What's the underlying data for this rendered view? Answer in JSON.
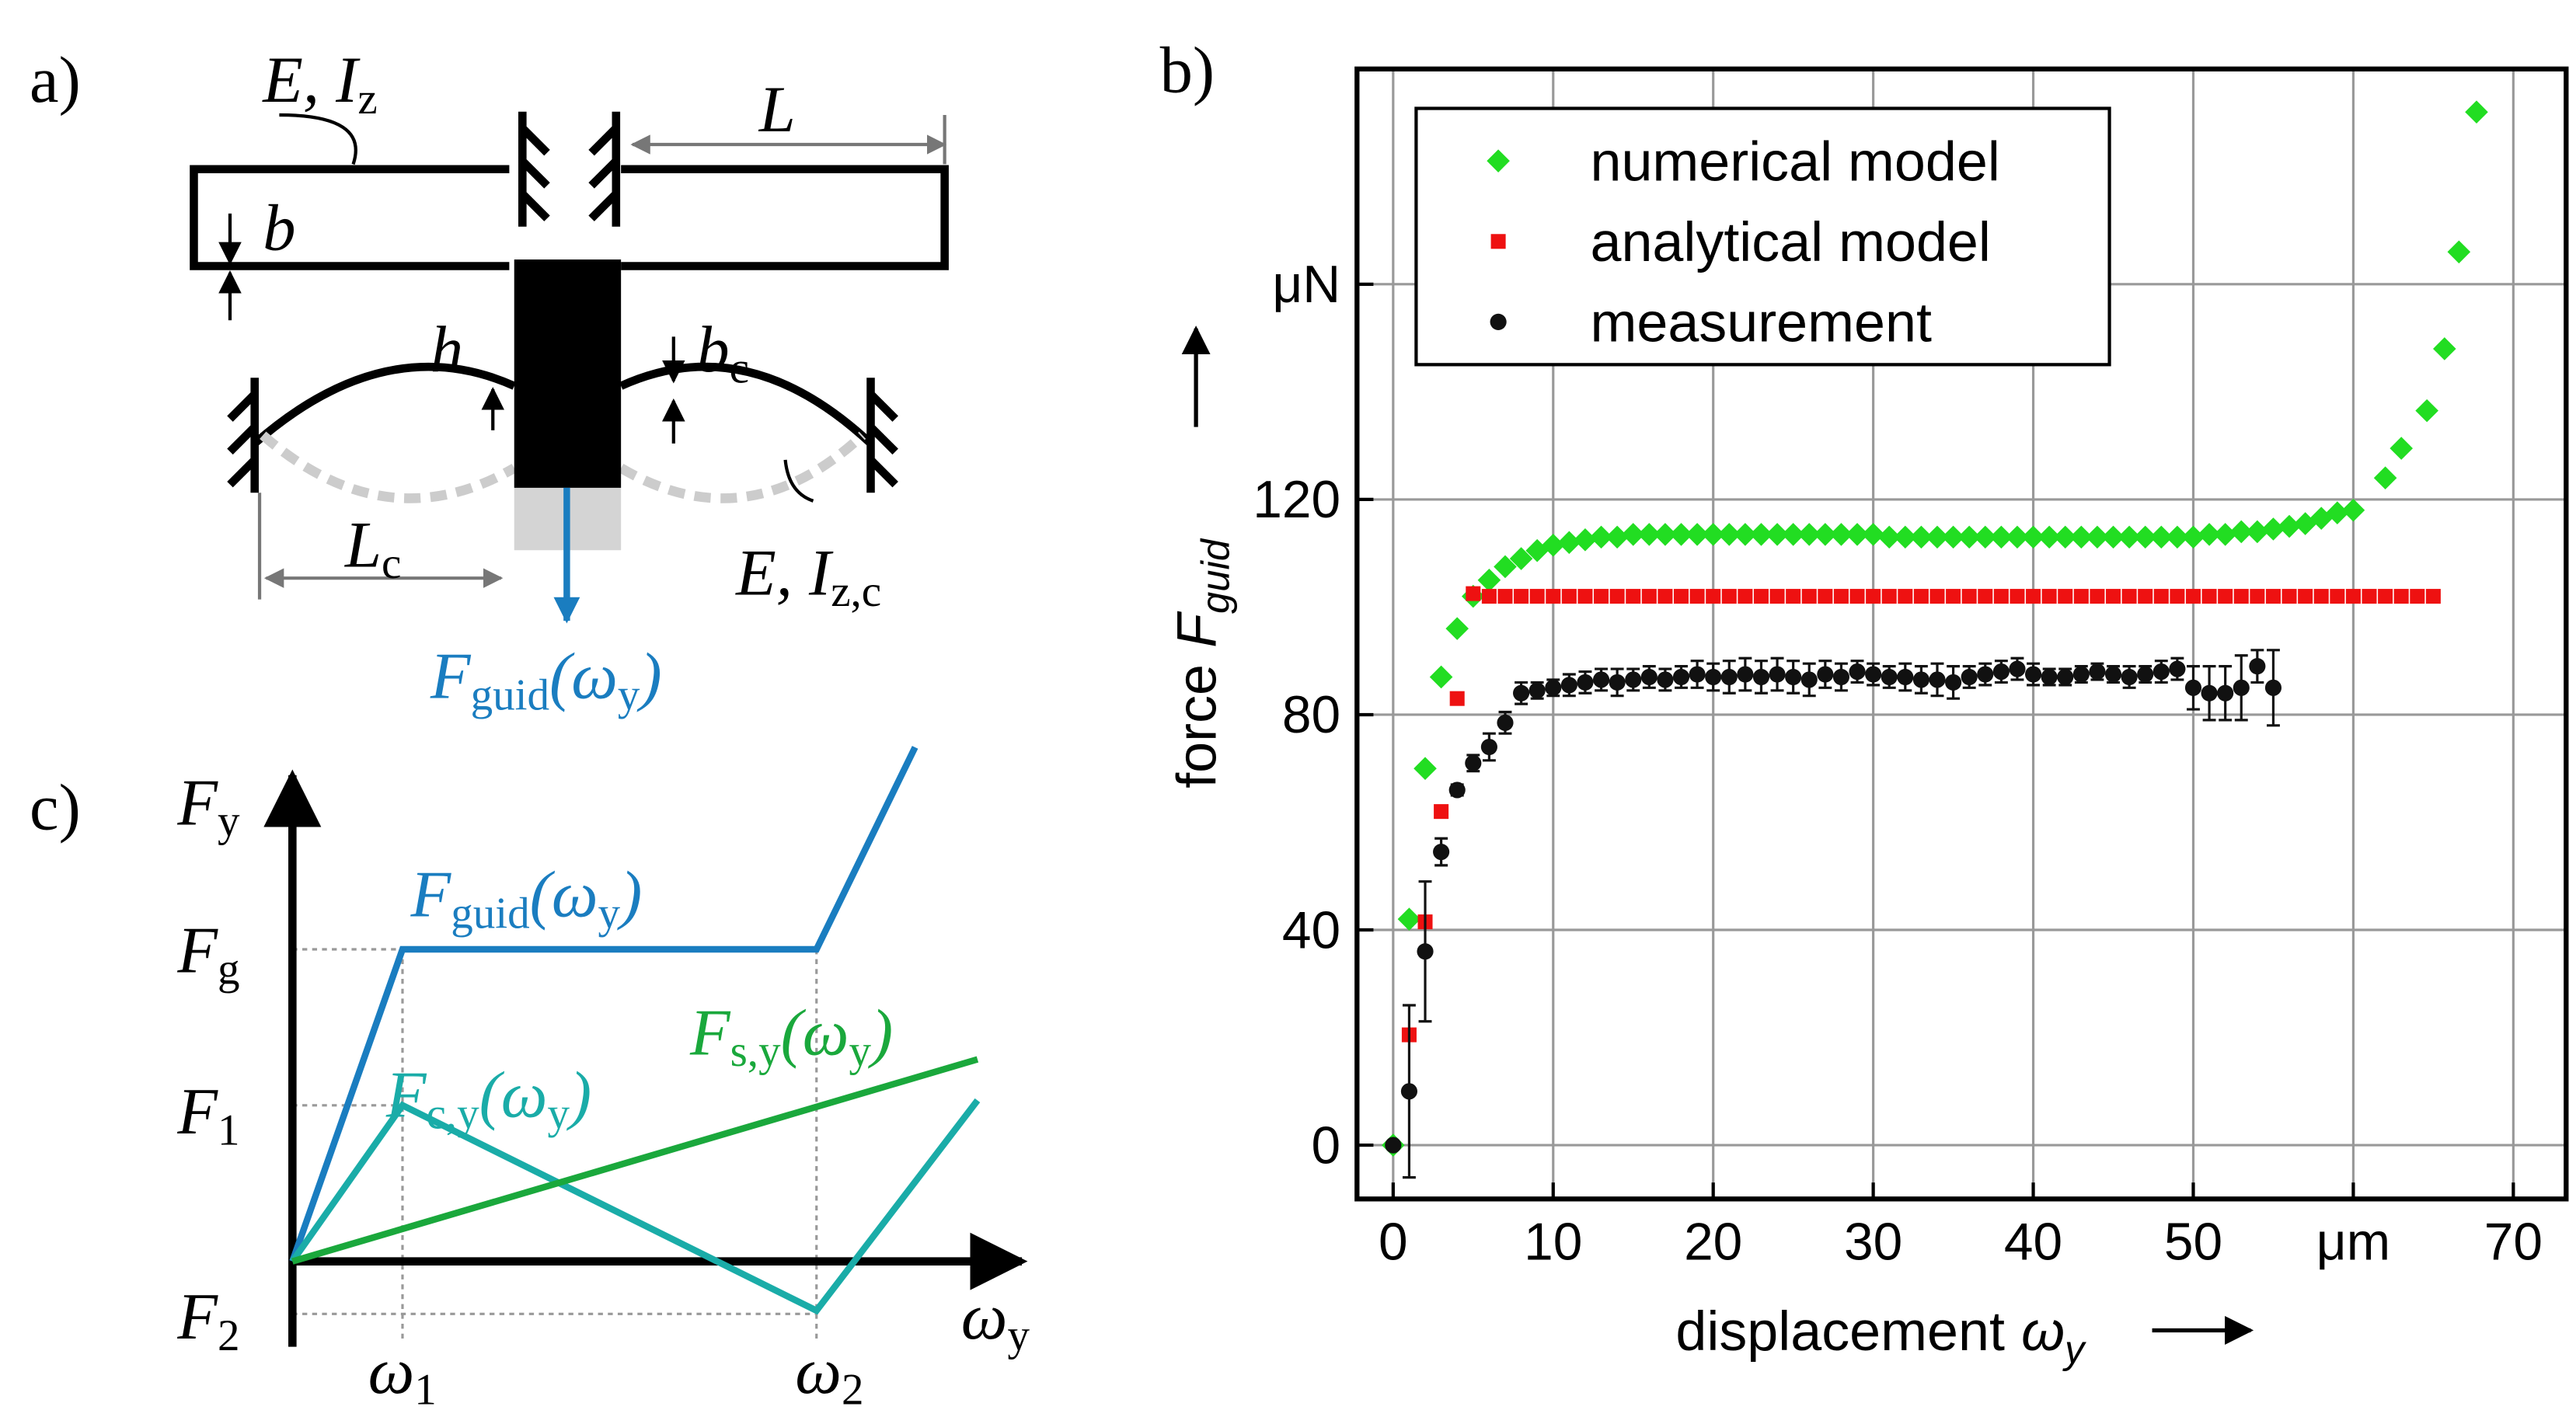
{
  "panel_labels": [
    "a)",
    "b)",
    "c)"
  ],
  "diagram_a": {
    "labels": [
      [
        "E, I",
        "z"
      ],
      [
        "L"
      ],
      [
        "b"
      ],
      [
        "h"
      ],
      [
        "b",
        "c"
      ],
      [
        "L",
        "c"
      ],
      [
        "E,  I",
        "z,c"
      ],
      [
        "F",
        "guid",
        "(ω",
        "y",
        ")"
      ]
    ]
  },
  "diagram_c": {
    "labels": [
      [
        "F",
        "y"
      ],
      [
        "F",
        "g"
      ],
      [
        "F",
        "1"
      ],
      [
        "F",
        "2"
      ],
      [
        "ω",
        "y"
      ],
      [
        "ω",
        "1"
      ],
      [
        "ω",
        "2"
      ],
      [
        "F",
        "guid",
        "(ω",
        "y",
        ")"
      ],
      [
        "F",
        "s,y",
        "(ω",
        "y",
        ")"
      ],
      [
        "F",
        "c,y",
        "(ω",
        "y",
        ")"
      ]
    ]
  },
  "chart_data": {
    "type": "scatter",
    "xlabel": {
      "text": "displacement",
      "symbol": "ω",
      "sub": "y"
    },
    "ylabel": {
      "text": "force",
      "symbol": "F",
      "sub": "guid"
    },
    "xlim": [
      -2.26,
      73.3
    ],
    "ylim": [
      -10,
      200
    ],
    "xticks": [
      0,
      10,
      20,
      30,
      40,
      50,
      {
        "value": 60,
        "label": "μm"
      },
      70
    ],
    "yticks": [
      0,
      40,
      80,
      120,
      {
        "value": 160,
        "label": "μN"
      }
    ],
    "grid": true,
    "legend": "upper left",
    "series": [
      {
        "name": "numerical model",
        "color": "#22dd22",
        "marker": "diamond",
        "x": [
          0,
          1,
          2,
          3,
          4,
          5,
          6,
          7,
          8,
          9,
          10,
          11,
          12,
          13,
          14,
          15,
          16,
          17,
          18,
          19,
          20,
          21,
          22,
          23,
          24,
          25,
          26,
          27,
          28,
          29,
          30,
          31,
          32,
          33,
          34,
          35,
          36,
          37,
          38,
          39,
          40,
          41,
          42,
          43,
          44,
          45,
          46,
          47,
          48,
          49,
          50,
          51,
          52,
          53,
          54,
          55,
          56,
          57,
          58,
          59,
          60,
          62,
          63,
          64.6,
          65.7,
          66.6,
          67.7
        ],
        "values": [
          0,
          42,
          70,
          87,
          96,
          102,
          105,
          107.5,
          109,
          110.5,
          111.5,
          112,
          112.5,
          113,
          113,
          113.5,
          113.5,
          113.5,
          113.5,
          113.5,
          113.5,
          113.5,
          113.5,
          113.5,
          113.5,
          113.5,
          113.5,
          113.5,
          113.5,
          113.5,
          113.5,
          113,
          113,
          113,
          113,
          113,
          113,
          113,
          113,
          113,
          113,
          113,
          113,
          113,
          113,
          113,
          113,
          113,
          113,
          113,
          113,
          113.5,
          113.5,
          114,
          114,
          114.5,
          115,
          115.5,
          116.5,
          117.5,
          118,
          124,
          129.5,
          136.5,
          148,
          166,
          192
        ]
      },
      {
        "name": "analytical model",
        "color": "#ee1111",
        "marker": "square",
        "x": [
          1,
          2,
          3,
          4,
          5,
          6,
          7,
          8,
          9,
          10,
          11,
          12,
          13,
          14,
          15,
          16,
          17,
          18,
          19,
          20,
          21,
          22,
          23,
          24,
          25,
          26,
          27,
          28,
          29,
          30,
          31,
          32,
          33,
          34,
          35,
          36,
          37,
          38,
          39,
          40,
          41,
          42,
          43,
          44,
          45,
          46,
          47,
          48,
          49,
          50,
          51,
          52,
          53,
          54,
          55,
          56,
          57,
          58,
          59,
          60,
          61,
          62,
          63,
          64,
          65
        ],
        "values": [
          20.5,
          41.5,
          62,
          83,
          102.5,
          102,
          102,
          102,
          102,
          102,
          102,
          102,
          102,
          102,
          102,
          102,
          102,
          102,
          102,
          102,
          102,
          102,
          102,
          102,
          102,
          102,
          102,
          102,
          102,
          102,
          102,
          102,
          102,
          102,
          102,
          102,
          102,
          102,
          102,
          102,
          102,
          102,
          102,
          102,
          102,
          102,
          102,
          102,
          102,
          102,
          102,
          102,
          102,
          102,
          102,
          102,
          102,
          102,
          102,
          102,
          102,
          102,
          102,
          102,
          102
        ]
      },
      {
        "name": "measurement",
        "color": "#111111",
        "marker": "circle",
        "x": [
          0,
          1,
          2,
          3,
          4,
          5,
          6,
          7,
          8,
          9,
          10,
          11,
          12,
          13,
          14,
          15,
          16,
          17,
          18,
          19,
          20,
          21,
          22,
          23,
          24,
          25,
          26,
          27,
          28,
          29,
          30,
          31,
          32,
          33,
          34,
          35,
          36,
          37,
          38,
          39,
          40,
          41,
          42,
          43,
          44,
          45,
          46,
          47,
          48,
          49,
          50,
          51,
          52,
          53,
          54,
          55
        ],
        "values": [
          0,
          10,
          36,
          54.5,
          66,
          71,
          74,
          78.5,
          84,
          84.5,
          85,
          85.5,
          86,
          86.5,
          86,
          86.5,
          87,
          86.5,
          87,
          87.5,
          87,
          87,
          87.5,
          87,
          87.5,
          87,
          86.5,
          87.5,
          87,
          88,
          87.5,
          87,
          87,
          86.5,
          86.5,
          86,
          87,
          87.5,
          88,
          88.5,
          87.5,
          87,
          87,
          87.5,
          88,
          87.5,
          87,
          87.5,
          88,
          88.5,
          85,
          84,
          84,
          85,
          89,
          85
        ],
        "errors": [
          0,
          16,
          13,
          2.5,
          1,
          1.5,
          2.5,
          2,
          2,
          1.5,
          1.5,
          2,
          2,
          2,
          2.5,
          2,
          2,
          2,
          2,
          2.5,
          2.5,
          3,
          3,
          3,
          3,
          3,
          3,
          2.5,
          2.5,
          2,
          2,
          2,
          2.5,
          2.5,
          3,
          3,
          2,
          2,
          2,
          2,
          2,
          1.5,
          1.5,
          1.5,
          1.5,
          1.5,
          2,
          1.5,
          2,
          2,
          4,
          5,
          5,
          6,
          3,
          7
        ]
      }
    ]
  }
}
